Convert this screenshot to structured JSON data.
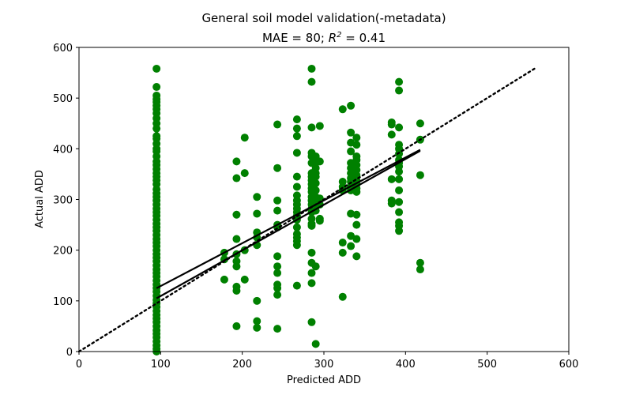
{
  "chart_data": {
    "type": "scatter",
    "title": "General soil model validation(-metadata)",
    "subtitle": {
      "mae_text": "MAE = 80; ",
      "r2_symbol": "R",
      "r2_exponent": "2",
      "r2_value_text": " = 0.41"
    },
    "xlabel": "Predicted ADD",
    "ylabel": "Actual ADD",
    "xlim": [
      0,
      600
    ],
    "ylim": [
      0,
      600
    ],
    "xticks": [
      "0",
      "100",
      "200",
      "300",
      "400",
      "500",
      "600"
    ],
    "yticks": [
      "0",
      "100",
      "200",
      "300",
      "400",
      "500",
      "600"
    ],
    "grid": false,
    "legend": "none",
    "colors": {
      "points": "#008000",
      "lines": "#000000"
    },
    "points": {
      "x95_y": [
        558,
        522,
        505,
        498,
        492,
        485,
        478,
        470,
        460,
        450,
        440,
        425,
        420,
        410,
        400,
        395,
        385,
        375,
        368,
        360,
        352,
        345,
        338,
        330,
        320,
        312,
        305,
        298,
        290,
        282,
        275,
        268,
        260,
        252,
        245,
        238,
        230,
        222,
        215,
        208,
        200,
        192,
        185,
        178,
        170,
        162,
        155,
        148,
        140,
        132,
        125,
        118,
        110,
        102,
        95,
        88,
        80,
        72,
        65,
        58,
        50,
        42,
        35,
        28,
        20,
        12,
        5,
        0
      ],
      "others": [
        [
          178,
          195
        ],
        [
          178,
          182
        ],
        [
          178,
          142
        ],
        [
          193,
          375
        ],
        [
          193,
          342
        ],
        [
          193,
          270
        ],
        [
          193,
          222
        ],
        [
          193,
          192
        ],
        [
          193,
          178
        ],
        [
          193,
          168
        ],
        [
          193,
          128
        ],
        [
          193,
          120
        ],
        [
          193,
          50
        ],
        [
          203,
          422
        ],
        [
          203,
          352
        ],
        [
          203,
          200
        ],
        [
          203,
          142
        ],
        [
          218,
          305
        ],
        [
          218,
          272
        ],
        [
          218,
          235
        ],
        [
          218,
          225
        ],
        [
          218,
          210
        ],
        [
          218,
          100
        ],
        [
          218,
          60
        ],
        [
          218,
          47
        ],
        [
          243,
          448
        ],
        [
          243,
          362
        ],
        [
          243,
          298
        ],
        [
          243,
          278
        ],
        [
          243,
          250
        ],
        [
          243,
          245
        ],
        [
          243,
          188
        ],
        [
          243,
          168
        ],
        [
          243,
          155
        ],
        [
          243,
          132
        ],
        [
          243,
          125
        ],
        [
          243,
          112
        ],
        [
          243,
          45
        ],
        [
          267,
          458
        ],
        [
          267,
          440
        ],
        [
          267,
          425
        ],
        [
          267,
          392
        ],
        [
          267,
          345
        ],
        [
          267,
          325
        ],
        [
          267,
          308
        ],
        [
          267,
          298
        ],
        [
          267,
          290
        ],
        [
          267,
          282
        ],
        [
          267,
          275
        ],
        [
          267,
          268
        ],
        [
          267,
          260
        ],
        [
          267,
          245
        ],
        [
          267,
          232
        ],
        [
          267,
          225
        ],
        [
          267,
          218
        ],
        [
          267,
          210
        ],
        [
          267,
          130
        ],
        [
          285,
          558
        ],
        [
          285,
          532
        ],
        [
          285,
          442
        ],
        [
          285,
          392
        ],
        [
          285,
          385
        ],
        [
          285,
          372
        ],
        [
          285,
          352
        ],
        [
          285,
          345
        ],
        [
          285,
          338
        ],
        [
          285,
          330
        ],
        [
          285,
          322
        ],
        [
          285,
          315
        ],
        [
          285,
          305
        ],
        [
          285,
          298
        ],
        [
          285,
          290
        ],
        [
          285,
          282
        ],
        [
          285,
          275
        ],
        [
          285,
          262
        ],
        [
          285,
          252
        ],
        [
          285,
          248
        ],
        [
          285,
          195
        ],
        [
          285,
          175
        ],
        [
          285,
          155
        ],
        [
          285,
          135
        ],
        [
          285,
          58
        ],
        [
          290,
          385
        ],
        [
          290,
          372
        ],
        [
          290,
          362
        ],
        [
          290,
          352
        ],
        [
          290,
          345
        ],
        [
          290,
          332
        ],
        [
          290,
          318
        ],
        [
          290,
          305
        ],
        [
          290,
          298
        ],
        [
          290,
          288
        ],
        [
          290,
          278
        ],
        [
          290,
          168
        ],
        [
          290,
          15
        ],
        [
          295,
          445
        ],
        [
          295,
          375
        ],
        [
          295,
          302
        ],
        [
          295,
          290
        ],
        [
          295,
          262
        ],
        [
          295,
          258
        ],
        [
          323,
          478
        ],
        [
          323,
          335
        ],
        [
          323,
          325
        ],
        [
          323,
          318
        ],
        [
          323,
          215
        ],
        [
          323,
          195
        ],
        [
          323,
          108
        ],
        [
          333,
          485
        ],
        [
          333,
          432
        ],
        [
          333,
          412
        ],
        [
          333,
          395
        ],
        [
          333,
          372
        ],
        [
          333,
          362
        ],
        [
          333,
          352
        ],
        [
          333,
          342
        ],
        [
          333,
          335
        ],
        [
          333,
          325
        ],
        [
          333,
          318
        ],
        [
          333,
          272
        ],
        [
          333,
          228
        ],
        [
          333,
          208
        ],
        [
          340,
          422
        ],
        [
          340,
          408
        ],
        [
          340,
          385
        ],
        [
          340,
          378
        ],
        [
          340,
          368
        ],
        [
          340,
          358
        ],
        [
          340,
          348
        ],
        [
          340,
          338
        ],
        [
          340,
          330
        ],
        [
          340,
          322
        ],
        [
          340,
          315
        ],
        [
          340,
          270
        ],
        [
          340,
          250
        ],
        [
          340,
          222
        ],
        [
          340,
          188
        ],
        [
          383,
          452
        ],
        [
          383,
          448
        ],
        [
          383,
          428
        ],
        [
          383,
          340
        ],
        [
          383,
          298
        ],
        [
          383,
          292
        ],
        [
          392,
          532
        ],
        [
          392,
          515
        ],
        [
          392,
          442
        ],
        [
          392,
          408
        ],
        [
          392,
          400
        ],
        [
          392,
          390
        ],
        [
          392,
          378
        ],
        [
          392,
          372
        ],
        [
          392,
          365
        ],
        [
          392,
          355
        ],
        [
          392,
          340
        ],
        [
          392,
          318
        ],
        [
          392,
          295
        ],
        [
          392,
          275
        ],
        [
          392,
          255
        ],
        [
          392,
          248
        ],
        [
          392,
          238
        ],
        [
          418,
          450
        ],
        [
          418,
          418
        ],
        [
          418,
          348
        ],
        [
          418,
          175
        ],
        [
          418,
          162
        ]
      ]
    },
    "lines": {
      "identity": {
        "style": "dotted",
        "x": [
          0,
          560
        ],
        "y": [
          0,
          560
        ]
      },
      "fit_1": {
        "style": "solid",
        "x": [
          95,
          418
        ],
        "y": [
          125,
          398
        ]
      },
      "fit_2": {
        "style": "solid",
        "x": [
          95,
          418
        ],
        "y": [
          105,
          396
        ]
      }
    }
  }
}
